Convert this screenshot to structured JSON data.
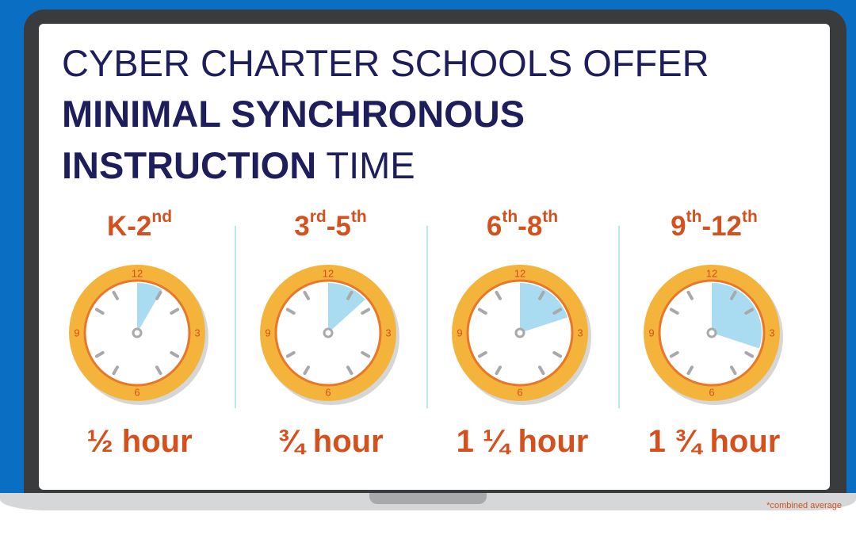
{
  "colors": {
    "background": "#0a6fc2",
    "accent": "#d4501d",
    "title": "#1e1e5c",
    "clock_face": "#f4b43c",
    "clock_wedge": "#a9dcf1"
  },
  "title": {
    "line1": "CYBER CHARTER SCHOOLS OFFER",
    "line2": "MINIMAL SYNCHRONOUS",
    "line3_bold": "INSTRUCTION",
    "line3_rest": " TIME"
  },
  "clock_numbers": {
    "top": "12",
    "right": "3",
    "bottom": "6",
    "left": "9"
  },
  "panels": [
    {
      "grade_a": "K-2",
      "sup_a": "nd",
      "grade_b": "",
      "sup_b": "",
      "amount": "½ hour",
      "minutes": 5
    },
    {
      "grade_a": "3",
      "sup_a": "rd",
      "grade_b": "-5",
      "sup_b": "th",
      "amount": "¾ hour",
      "minutes": 8
    },
    {
      "grade_a": "6",
      "sup_a": "th",
      "grade_b": "-8",
      "sup_b": "th",
      "amount": "1 ¼ hour",
      "minutes": 12
    },
    {
      "grade_a": "9",
      "sup_a": "th",
      "grade_b": "-12",
      "sup_b": "th",
      "amount": "1 ¾ hour",
      "minutes": 18
    }
  ],
  "footnote": "*combined average"
}
